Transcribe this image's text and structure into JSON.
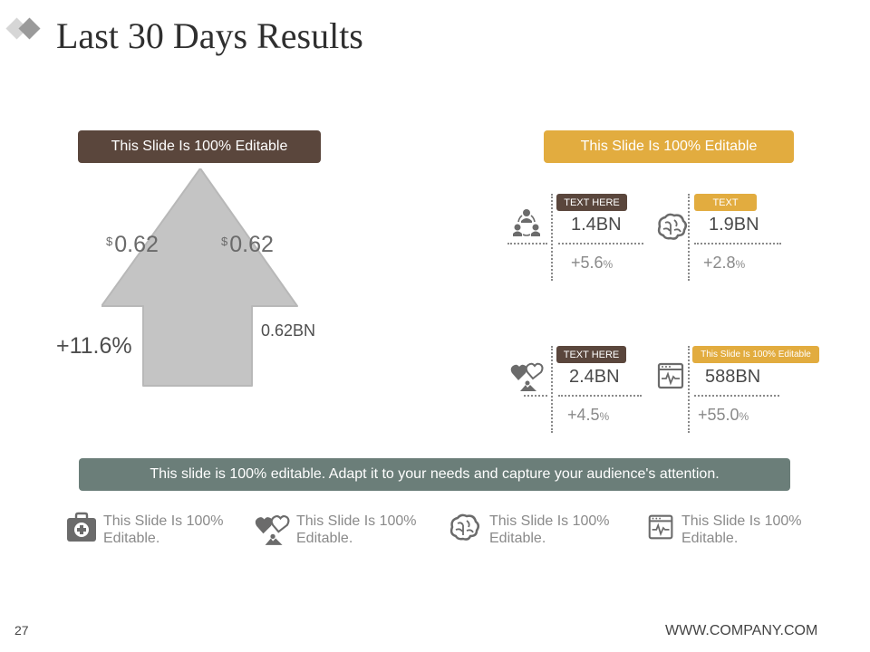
{
  "header": {
    "title": "Last 30 Days Results"
  },
  "left_panel": {
    "banner": "This Slide Is 100% Editable",
    "price_1": {
      "currency": "$",
      "value": "0.62"
    },
    "price_2": {
      "currency": "$",
      "value": "0.62"
    },
    "growth": "+11.6%",
    "volume": "0.62BN"
  },
  "right_panel": {
    "banner": "This Slide Is 100% Editable",
    "metrics": [
      {
        "icon": "team-icon",
        "tag": "TEXT HERE",
        "tag_color": "#5a463c",
        "value": "1.4BN",
        "change": "+5.6",
        "unit": "%"
      },
      {
        "icon": "brain-icon",
        "tag": "TEXT",
        "tag_color": "#e2ac3f",
        "value": "1.9BN",
        "change": "+2.8",
        "unit": "%"
      },
      {
        "icon": "hearts-icon",
        "tag": "TEXT HERE",
        "tag_color": "#5a463c",
        "value": "2.4BN",
        "change": "+4.5",
        "unit": "%"
      },
      {
        "icon": "monitor-pulse-icon",
        "tag": "This Slide Is 100% Editable",
        "tag_color": "#e2ac3f",
        "value": "588BN",
        "change": "+55.0",
        "unit": "%"
      }
    ]
  },
  "bottom_bar": "This slide is 100% editable. Adapt it to your needs and capture your audience's attention.",
  "features": [
    {
      "icon": "medical-kit-icon",
      "line1": "This Slide Is 100%",
      "line2": "Editable."
    },
    {
      "icon": "hearts-icon",
      "line1": "This Slide Is 100%",
      "line2": "Editable."
    },
    {
      "icon": "brain-icon",
      "line1": "This Slide Is 100%",
      "line2": "Editable."
    },
    {
      "icon": "monitor-pulse-icon",
      "line1": "This Slide Is 100%",
      "line2": "Editable."
    }
  ],
  "footer": {
    "page_number": "27",
    "website": "WWW.COMPANY.COM"
  },
  "colors": {
    "brown": "#5a463c",
    "gold": "#e2ac3f",
    "slate": "#6b7e79",
    "arrow_gray": "#c4c4c4",
    "icon_gray": "#6b6b6b"
  }
}
